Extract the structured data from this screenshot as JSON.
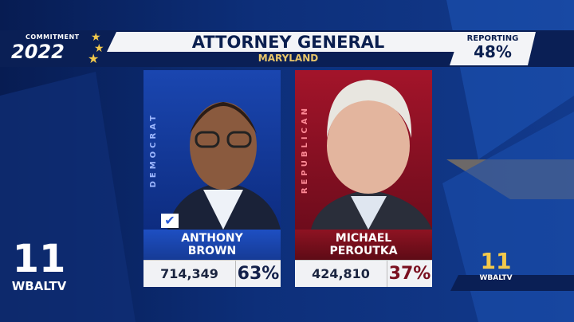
{
  "branding": {
    "commitment": "COMMITMENT",
    "year": "2022",
    "station": "WBALTV",
    "channel": "11"
  },
  "header": {
    "title": "ATTORNEY GENERAL",
    "state": "MARYLAND",
    "reporting_label": "REPORTING",
    "reporting_value": "48%"
  },
  "candidates": [
    {
      "party": "DEMOCRAT",
      "name_line1": "ANTHONY",
      "name_line2": "BROWN",
      "votes": "714,349",
      "percent": "63%",
      "winner": true,
      "color": "#1e4fc2"
    },
    {
      "party": "REPUBLICAN",
      "name_line1": "MICHAEL",
      "name_line2": "PEROUTKA",
      "votes": "424,810",
      "percent": "37%",
      "winner": false,
      "color": "#b0182a"
    }
  ]
}
